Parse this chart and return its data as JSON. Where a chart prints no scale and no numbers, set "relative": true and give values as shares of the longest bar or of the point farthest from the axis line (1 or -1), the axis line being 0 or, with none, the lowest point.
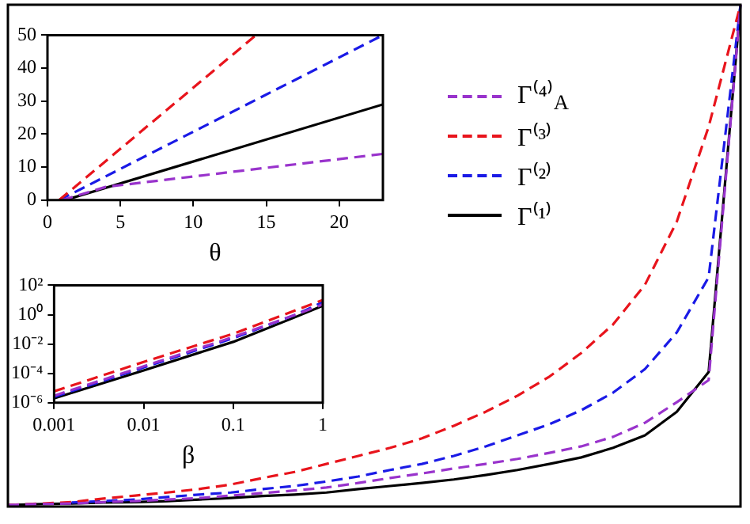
{
  "chart_data": [
    {
      "type": "line",
      "relative": true,
      "tick_labels": false,
      "legend": "top right",
      "categories": [
        null,
        null,
        null,
        null,
        null,
        null,
        null,
        null,
        null,
        null,
        null,
        null,
        null,
        null,
        null,
        null,
        null,
        null,
        null,
        null,
        null,
        null,
        null,
        null
      ],
      "series": [
        {
          "name": "Γ⁽⁴⁾$_{A}$",
          "color": "#9933cc",
          "line_style": "dashed",
          "values": [
            0.003,
            0.005,
            0.006,
            0.009,
            0.011,
            0.014,
            0.017,
            0.022,
            0.027,
            0.032,
            0.038,
            0.047,
            0.057,
            0.066,
            0.076,
            0.085,
            0.095,
            0.107,
            0.12,
            0.139,
            0.167,
            0.208,
            0.252,
            1
          ]
        },
        {
          "name": "Γ⁽³⁾",
          "color": "#e8141c",
          "line_style": "dashed",
          "values": [
            0.003,
            0.006,
            0.009,
            0.016,
            0.022,
            0.028,
            0.035,
            0.044,
            0.057,
            0.069,
            0.085,
            0.101,
            0.117,
            0.136,
            0.161,
            0.189,
            0.221,
            0.259,
            0.306,
            0.363,
            0.442,
            0.568,
            0.757,
            1
          ]
        },
        {
          "name": "Γ⁽²⁾",
          "color": "#1a1ae6",
          "line_style": "dashed",
          "values": [
            null,
            null,
            0.008,
            0.011,
            0.014,
            0.019,
            0.024,
            0.028,
            0.035,
            0.041,
            0.05,
            0.06,
            0.073,
            0.085,
            0.101,
            0.12,
            0.142,
            0.164,
            0.192,
            0.227,
            0.274,
            0.347,
            0.457,
            1
          ]
        },
        {
          "name": "Γ⁽¹⁾",
          "color": "#000000",
          "line_style": "solid",
          "values": [
            0.003,
            0.005,
            0.006,
            0.008,
            0.009,
            0.011,
            0.014,
            0.017,
            0.021,
            0.024,
            0.028,
            0.035,
            0.041,
            0.047,
            0.054,
            0.063,
            0.073,
            0.085,
            0.098,
            0.117,
            0.142,
            0.189,
            0.268,
            1
          ]
        }
      ]
    },
    {
      "type": "line",
      "xlabel": "θ",
      "xlim": [
        0,
        23
      ],
      "xticks": [
        0,
        5,
        10,
        15,
        20
      ],
      "ylim": [
        0,
        50
      ],
      "yticks": [
        0,
        10,
        20,
        30,
        40,
        50
      ],
      "series": [
        {
          "color": "#9933cc",
          "line_style": "dashed",
          "x": [
            1,
            4,
            23
          ],
          "values": [
            0,
            4,
            14
          ]
        },
        {
          "color": "#e8141c",
          "line_style": "dashed",
          "x": [
            0.8,
            14.3
          ],
          "values": [
            0,
            50
          ]
        },
        {
          "color": "#1a1ae6",
          "line_style": "dashed",
          "x": [
            0.8,
            23
          ],
          "values": [
            0,
            50
          ]
        },
        {
          "color": "#000000",
          "line_style": "solid",
          "x": [
            1.2,
            23
          ],
          "values": [
            0,
            29
          ]
        }
      ]
    },
    {
      "type": "line",
      "xlabel": "β",
      "log": "xy",
      "xlim": [
        0.001,
        1
      ],
      "xticks": [
        0.001,
        0.01,
        0.1,
        1
      ],
      "ylim": [
        1e-06,
        100
      ],
      "yticks": [
        {
          "value": 1e-06,
          "label": "10⁻⁶"
        },
        {
          "value": 0.0001,
          "label": "10⁻⁴"
        },
        {
          "value": 0.01,
          "label": "10⁻²"
        },
        {
          "value": 1,
          "label": "10⁰"
        },
        {
          "value": 100,
          "label": "10²"
        }
      ],
      "series": [
        {
          "color": "#9933cc",
          "line_style": "dashed",
          "x": [
            0.001,
            0.01,
            0.1,
            0.5,
            1
          ],
          "values": [
            3e-06,
            0.0003,
            0.03,
            1,
            5
          ]
        },
        {
          "color": "#e8141c",
          "line_style": "dashed",
          "x": [
            0.001,
            0.01,
            0.1,
            0.5,
            1
          ],
          "values": [
            6e-06,
            0.0006,
            0.05,
            2,
            10
          ]
        },
        {
          "color": "#1a1ae6",
          "line_style": "dashed",
          "x": [
            0.001,
            0.01,
            0.1,
            0.5,
            1
          ],
          "values": [
            2.5e-06,
            0.00025,
            0.025,
            1,
            7
          ]
        },
        {
          "color": "#000000",
          "line_style": "solid",
          "x": [
            0.001,
            0.01,
            0.1,
            0.5,
            1
          ],
          "values": [
            2e-06,
            0.00016,
            0.014,
            0.7,
            4
          ]
        }
      ]
    }
  ]
}
